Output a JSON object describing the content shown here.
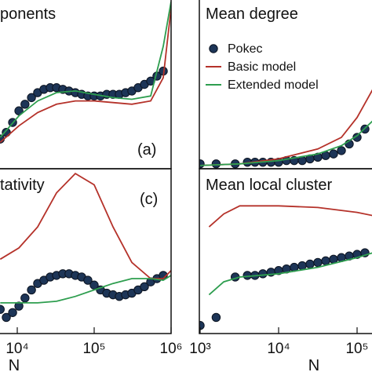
{
  "chart_data": [
    {
      "type": "line",
      "title": "ponents",
      "annotation": "(a)",
      "xscale": "log",
      "xlim": [
        1000,
        1000000
      ],
      "ylim": [
        0,
        1
      ],
      "series": [
        {
          "color": "#1d3557",
          "mode": "markers",
          "x": [
            6000,
            7200,
            8700,
            10500,
            12600,
            15300,
            18400,
            22200,
            26800,
            32400,
            39100,
            47100,
            56900,
            68700,
            82800,
            100000,
            120800,
            145600,
            175800,
            212300,
            256000,
            309000,
            372700,
            450000,
            543000,
            655000,
            791000
          ],
          "values": [
            0.17,
            0.21,
            0.27,
            0.34,
            0.38,
            0.42,
            0.45,
            0.47,
            0.48,
            0.48,
            0.47,
            0.46,
            0.45,
            0.44,
            0.43,
            0.43,
            0.43,
            0.44,
            0.44,
            0.44,
            0.45,
            0.46,
            0.48,
            0.5,
            0.52,
            0.55,
            0.58
          ]
        },
        {
          "color": "#b5322a",
          "mode": "line",
          "x": [
            6000,
            10500,
            18400,
            32400,
            56900,
            100000,
            175800,
            309000,
            543000,
            791000,
            1000000
          ],
          "values": [
            0.15,
            0.25,
            0.33,
            0.38,
            0.4,
            0.4,
            0.39,
            0.38,
            0.4,
            0.54,
            0.96
          ]
        },
        {
          "color": "#2e9e4f",
          "mode": "line",
          "x": [
            6000,
            10500,
            18400,
            32400,
            56900,
            100000,
            175800,
            309000,
            543000,
            791000,
            1000000
          ],
          "values": [
            0.18,
            0.31,
            0.4,
            0.45,
            0.46,
            0.44,
            0.42,
            0.41,
            0.43,
            0.73,
            1.0
          ]
        }
      ]
    },
    {
      "type": "line",
      "title": "Mean degree",
      "xscale": "log",
      "xlim": [
        1000,
        1000000
      ],
      "ylim": [
        0,
        1
      ],
      "series": [
        {
          "name": "Pokec",
          "color": "#1d3557",
          "mode": "markers",
          "x": [
            1000,
            1600,
            2800,
            4000,
            5000,
            6300,
            8000,
            10000,
            12600,
            15800,
            20000,
            25100,
            31600,
            39800,
            50100,
            63100,
            79400,
            100000,
            125900
          ],
          "values": [
            0.02,
            0.02,
            0.02,
            0.03,
            0.03,
            0.03,
            0.03,
            0.03,
            0.04,
            0.04,
            0.04,
            0.05,
            0.06,
            0.07,
            0.08,
            0.1,
            0.14,
            0.18,
            0.23
          ]
        },
        {
          "name": "Basic model",
          "color": "#b5322a",
          "mode": "line",
          "x": [
            1000,
            3200,
            10000,
            31600,
            63100,
            100000,
            158500
          ],
          "values": [
            0.01,
            0.02,
            0.05,
            0.11,
            0.18,
            0.3,
            0.47
          ]
        },
        {
          "name": "Extended model",
          "color": "#2e9e4f",
          "mode": "line",
          "x": [
            1000,
            3200,
            10000,
            31600,
            63100,
            100000,
            158500
          ],
          "values": [
            0.01,
            0.02,
            0.04,
            0.08,
            0.13,
            0.19,
            0.28
          ]
        }
      ]
    },
    {
      "type": "line",
      "title": "tativity",
      "annotation": "(c)",
      "xlabel": "N",
      "xscale": "log",
      "xlim": [
        1000,
        1000000
      ],
      "ylim": [
        0,
        1
      ],
      "xticks": [
        {
          "value": 10000,
          "label": "10⁴"
        },
        {
          "value": 100000,
          "label": "10⁵"
        },
        {
          "value": 1000000,
          "label": "10⁶"
        }
      ],
      "series": [
        {
          "color": "#1d3557",
          "mode": "markers",
          "x": [
            6000,
            7200,
            8700,
            10500,
            12600,
            15300,
            18400,
            22200,
            26800,
            32400,
            39100,
            47100,
            56900,
            68700,
            82800,
            100000,
            120800,
            145600,
            175800,
            212300,
            256000,
            309000,
            372700,
            450000,
            543000,
            655000,
            791000
          ],
          "values": [
            0.14,
            0.09,
            0.12,
            0.16,
            0.21,
            0.26,
            0.3,
            0.32,
            0.34,
            0.35,
            0.36,
            0.36,
            0.35,
            0.34,
            0.32,
            0.29,
            0.26,
            0.24,
            0.23,
            0.22,
            0.23,
            0.24,
            0.26,
            0.28,
            0.31,
            0.33,
            0.35
          ]
        },
        {
          "color": "#b5322a",
          "mode": "line",
          "x": [
            6000,
            10500,
            18400,
            32400,
            56900,
            100000,
            175800,
            309000,
            543000,
            791000,
            1000000
          ],
          "values": [
            0.45,
            0.52,
            0.65,
            0.86,
            0.98,
            0.91,
            0.65,
            0.43,
            0.33,
            0.33,
            0.38
          ]
        },
        {
          "color": "#2e9e4f",
          "mode": "line",
          "x": [
            6000,
            10500,
            18400,
            32400,
            56900,
            100000,
            175800,
            309000,
            543000,
            791000,
            1000000
          ],
          "values": [
            0.18,
            0.18,
            0.18,
            0.19,
            0.22,
            0.26,
            0.3,
            0.33,
            0.33,
            0.32,
            0.35
          ]
        }
      ]
    },
    {
      "type": "line",
      "title": "Mean local cluster",
      "xlabel": "N",
      "xscale": "log",
      "xlim": [
        1000,
        1000000
      ],
      "ylim": [
        0,
        1
      ],
      "xticks": [
        {
          "value": 1000,
          "label": "10³"
        },
        {
          "value": 10000,
          "label": "10⁴"
        },
        {
          "value": 100000,
          "label": "10⁵"
        }
      ],
      "series": [
        {
          "color": "#1d3557",
          "mode": "markers",
          "x": [
            1000,
            1600,
            2800,
            4000,
            5000,
            6300,
            8000,
            10000,
            12600,
            15800,
            20000,
            25100,
            31600,
            39800,
            50100,
            63100,
            79400,
            100000,
            125900
          ],
          "values": [
            0.04,
            0.09,
            0.34,
            0.35,
            0.35,
            0.36,
            0.37,
            0.38,
            0.39,
            0.4,
            0.41,
            0.42,
            0.43,
            0.44,
            0.45,
            0.46,
            0.47,
            0.48,
            0.49
          ]
        },
        {
          "color": "#b5322a",
          "mode": "line",
          "x": [
            1300,
            2000,
            3200,
            5000,
            10000,
            31600,
            100000,
            158500
          ],
          "values": [
            0.65,
            0.73,
            0.78,
            0.78,
            0.78,
            0.77,
            0.74,
            0.72
          ]
        },
        {
          "color": "#2e9e4f",
          "mode": "line",
          "x": [
            1300,
            2000,
            3200,
            10000,
            31600,
            100000,
            158500
          ],
          "values": [
            0.23,
            0.31,
            0.34,
            0.36,
            0.4,
            0.46,
            0.49
          ]
        }
      ]
    }
  ]
}
